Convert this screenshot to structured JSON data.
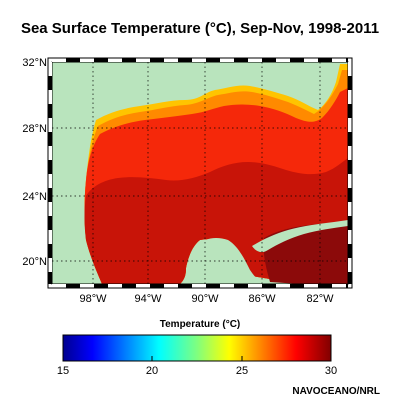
{
  "title": "Sea Surface Temperature (°C), Sep-Nov, 1998-2011",
  "map": {
    "lat_labels": [
      "32°N",
      "28°N",
      "24°N",
      "20°N"
    ],
    "lon_labels": [
      "98°W",
      "94°W",
      "90°W",
      "86°W",
      "82°W"
    ],
    "land_color": "#b9e4bd",
    "grid": "dotted"
  },
  "colorbar": {
    "title": "Temperature (°C)",
    "min": 15,
    "max": 30,
    "tick_labels": [
      "15",
      "20",
      "25",
      "30"
    ],
    "colormap": "jet"
  },
  "credit": "NAVOCEANO/NRL"
}
